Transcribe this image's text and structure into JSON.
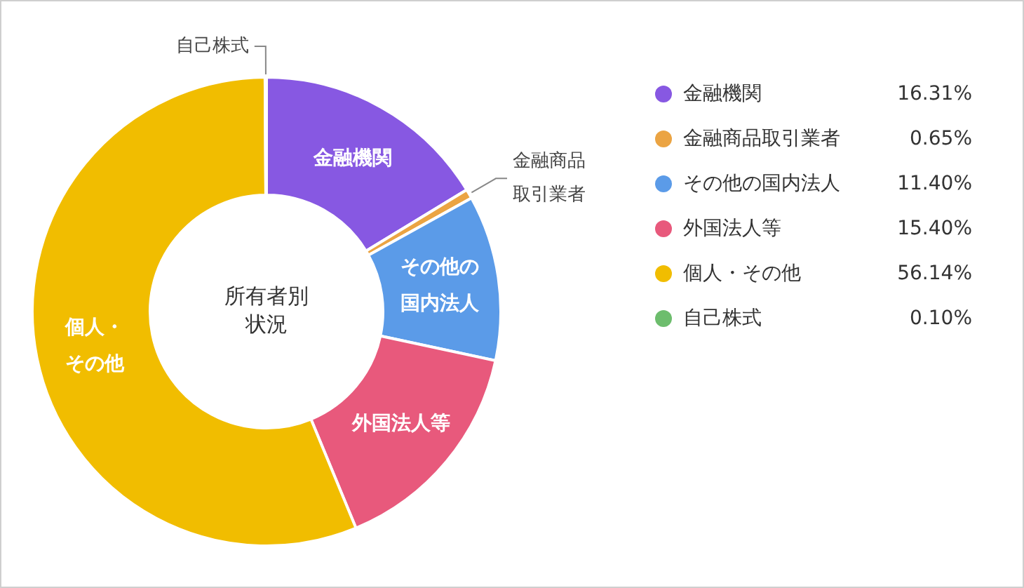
{
  "chart_data": {
    "type": "donut",
    "title": "所有者別状況",
    "categories": [
      "金融機関",
      "金融商品取引業者",
      "その他の国内法人",
      "外国法人等",
      "個人・その他",
      "自己株式"
    ],
    "values": [
      16.31,
      0.65,
      11.4,
      15.4,
      56.14,
      0.1
    ],
    "value_labels": [
      "16.31%",
      "0.65%",
      "11.40%",
      "15.40%",
      "56.14%",
      "0.10%"
    ],
    "colors": [
      "#8758e2",
      "#eba443",
      "#5b9be8",
      "#e8597c",
      "#f1bd00",
      "#6dbd6d"
    ],
    "legend": "right",
    "annotations": [
      {
        "text": "金融機関",
        "x": "金融機関"
      },
      {
        "text": "金融商品取引業者",
        "x": "金融商品取引業者"
      },
      {
        "text": "その他の国内法人",
        "x": "その他の国内法人"
      },
      {
        "text": "外国法人等",
        "x": "外国法人等"
      },
      {
        "text": "個人・その他",
        "x": "個人・その他"
      },
      {
        "text": "自己株式",
        "x": "自己株式"
      }
    ]
  }
}
